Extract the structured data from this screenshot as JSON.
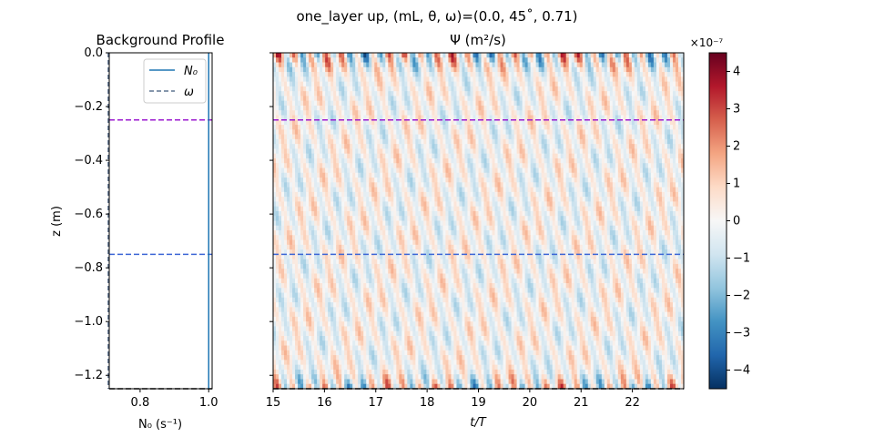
{
  "figure": {
    "title": "one_layer up, (mL, θ, ω)=(0.0, 45˚, 0.71)"
  },
  "colors": {
    "n0_line": "#1f77b4",
    "omega_line": "#5f7591",
    "upper_dashed": "#9b19d0",
    "lower_dashed": "#3c66d6",
    "bottom_dashed": "#000000"
  },
  "chart_data": [
    {
      "type": "line",
      "title": "Background Profile",
      "xlabel": "N₀ (s⁻¹)",
      "ylabel": "z (m)",
      "xlim": [
        0.71,
        1.01
      ],
      "ylim": [
        -1.25,
        0.0
      ],
      "xticks": [
        0.8,
        1.0
      ],
      "xtick_labels": [
        "0.8",
        "1.0"
      ],
      "yticks": [
        0.0,
        -0.2,
        -0.4,
        -0.6,
        -0.8,
        -1.0,
        -1.2
      ],
      "ytick_labels": [
        "0.0",
        "−0.2",
        "−0.4",
        "−0.6",
        "−0.8",
        "−1.0",
        "−1.2"
      ],
      "legend_position": "top-right",
      "series": [
        {
          "name": "N₀",
          "style": "solid",
          "x": [
            1.0,
            1.0
          ],
          "y": [
            0.0,
            -1.25
          ]
        },
        {
          "name": "ω",
          "style": "dashed",
          "x": [
            0.7071,
            0.7071
          ],
          "y": [
            0.0,
            -1.25
          ]
        }
      ],
      "hlines": [
        {
          "y": -0.25,
          "style": "dashed",
          "color_key": "upper_dashed"
        },
        {
          "y": -0.75,
          "style": "dashed",
          "color_key": "lower_dashed"
        },
        {
          "y": -1.25,
          "style": "dashed",
          "color_key": "bottom_dashed"
        }
      ]
    },
    {
      "type": "heatmap",
      "title": "Ψ (m²/s)",
      "xlabel": "t/T",
      "ylabel": "",
      "xlim": [
        15,
        23
      ],
      "ylim": [
        -1.25,
        0.0
      ],
      "xticks": [
        15,
        16,
        17,
        18,
        19,
        20,
        21,
        22
      ],
      "xtick_labels": [
        "15",
        "16",
        "17",
        "18",
        "19",
        "20",
        "21",
        "22"
      ],
      "yticks": [
        0.0,
        -0.2,
        -0.4,
        -0.6,
        -0.8,
        -1.0,
        -1.2
      ],
      "colormap": "RdBu_r",
      "color_range": [
        -4.5e-07,
        4.5e-07
      ],
      "hlines": [
        {
          "y": -0.25,
          "style": "dashed",
          "color_key": "upper_dashed"
        },
        {
          "y": -0.75,
          "style": "dashed",
          "color_key": "lower_dashed"
        },
        {
          "y": -1.25,
          "style": "dashed",
          "color_key": "bottom_dashed"
        }
      ]
    },
    {
      "type": "colorbar",
      "scale_label": "×10⁻⁷",
      "range": [
        -4.5,
        4.5
      ],
      "ticks": [
        4,
        3,
        2,
        1,
        0,
        -1,
        -2,
        -3,
        -4
      ],
      "tick_labels": [
        "4",
        "3",
        "2",
        "1",
        "0",
        "−1",
        "−2",
        "−3",
        "−4"
      ]
    }
  ]
}
